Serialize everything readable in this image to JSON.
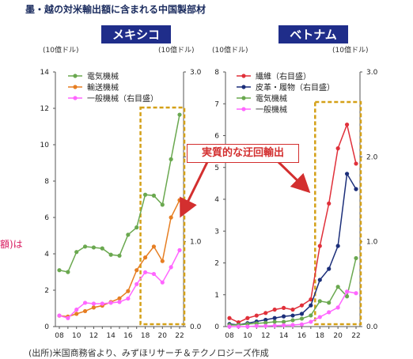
{
  "page_title": "墨・越の対米輸出額に含まれる中国製部材",
  "left_fragment": "額)は",
  "footer": "(出所)米国商務省より、みずほリサーチ＆テクノロジーズ作成",
  "callout": "実質的な迂回輸出",
  "colors": {
    "electric": "#6aa84f",
    "transport": "#e67e22",
    "general": "#ff66ff",
    "textile": "#e0303a",
    "leather": "#1c2f7a",
    "highlight_box": "#d4a017",
    "arrow": "#d32f2f",
    "title_bg": "#1f2d8a"
  },
  "chart_data": [
    {
      "type": "line",
      "title": "メキシコ",
      "left_axis_unit": "(10億ドル)",
      "right_axis_unit": "(10億ドル)",
      "x": [
        "08",
        "09",
        "10",
        "11",
        "12",
        "13",
        "14",
        "15",
        "16",
        "17",
        "18",
        "19",
        "20",
        "21",
        "22"
      ],
      "x_tick_labels": [
        "08",
        "10",
        "12",
        "14",
        "16",
        "18",
        "20",
        "22"
      ],
      "ylim_left": [
        0,
        14
      ],
      "yticks_left": [
        "0",
        "2",
        "4",
        "6",
        "8",
        "10",
        "12",
        "14"
      ],
      "ylim_right": [
        0,
        3.0
      ],
      "yticks_right": [
        "0.0",
        "1.0",
        "2.0",
        "3.0"
      ],
      "grid": false,
      "legend_position": "top-left",
      "series": [
        {
          "name": "電気機械",
          "axis": "left",
          "color_key": "electric",
          "values": [
            3.1,
            3.0,
            4.1,
            4.4,
            4.35,
            4.3,
            3.95,
            3.9,
            5.05,
            5.45,
            7.25,
            7.2,
            6.7,
            9.2,
            11.65
          ]
        },
        {
          "name": "輸送機械",
          "axis": "left",
          "color_key": "transport",
          "values": [
            0.6,
            0.55,
            0.7,
            0.85,
            1.05,
            1.15,
            1.35,
            1.55,
            1.95,
            3.1,
            3.8,
            4.4,
            3.6,
            6.0,
            6.95
          ]
        },
        {
          "name": "一般機械（右目盛）",
          "axis": "right",
          "color_key": "general",
          "values": [
            0.13,
            0.1,
            0.2,
            0.28,
            0.27,
            0.27,
            0.28,
            0.29,
            0.33,
            0.5,
            0.64,
            0.62,
            0.52,
            0.7,
            0.9
          ]
        }
      ],
      "highlight_x_range": [
        "18",
        "22"
      ]
    },
    {
      "type": "line",
      "title": "ベトナム",
      "left_axis_unit": "(10億ドル)",
      "right_axis_unit": "(10億ドル)",
      "x": [
        "08",
        "09",
        "10",
        "11",
        "12",
        "13",
        "14",
        "15",
        "16",
        "17",
        "18",
        "19",
        "20",
        "21",
        "22"
      ],
      "x_tick_labels": [
        "08",
        "10",
        "12",
        "14",
        "16",
        "18",
        "20",
        "22"
      ],
      "ylim_left": [
        0,
        8
      ],
      "yticks_left": [
        "0",
        "1",
        "2",
        "3",
        "4",
        "5",
        "6",
        "7",
        "8"
      ],
      "ylim_right": [
        0,
        3.0
      ],
      "yticks_right": [
        "0.0",
        "1.0",
        "2.0",
        "3.0"
      ],
      "grid": false,
      "legend_position": "top-left",
      "series": [
        {
          "name": "繊維（右目盛）",
          "axis": "right",
          "color_key": "textile",
          "values": [
            0.1,
            0.05,
            0.1,
            0.13,
            0.16,
            0.2,
            0.22,
            0.2,
            0.25,
            0.32,
            0.95,
            1.45,
            2.1,
            2.38,
            1.92
          ]
        },
        {
          "name": "皮革・履物（右目盛）",
          "axis": "right",
          "color_key": "leather",
          "values": [
            0.03,
            0.02,
            0.04,
            0.06,
            0.08,
            0.1,
            0.12,
            0.13,
            0.15,
            0.25,
            0.55,
            0.68,
            0.95,
            1.8,
            1.62
          ]
        },
        {
          "name": "電気機械",
          "axis": "left",
          "color_key": "electric",
          "values": [
            0.05,
            0.05,
            0.08,
            0.1,
            0.12,
            0.15,
            0.15,
            0.2,
            0.25,
            0.35,
            0.8,
            0.75,
            1.25,
            0.95,
            2.15
          ]
        },
        {
          "name": "一般機械",
          "axis": "left",
          "color_key": "general",
          "values": [
            0.0,
            0.0,
            0.0,
            0.02,
            0.02,
            0.03,
            0.04,
            0.05,
            0.07,
            0.15,
            0.3,
            0.45,
            0.6,
            1.1,
            1.05
          ]
        }
      ],
      "highlight_x_range": [
        "18",
        "22"
      ]
    }
  ]
}
